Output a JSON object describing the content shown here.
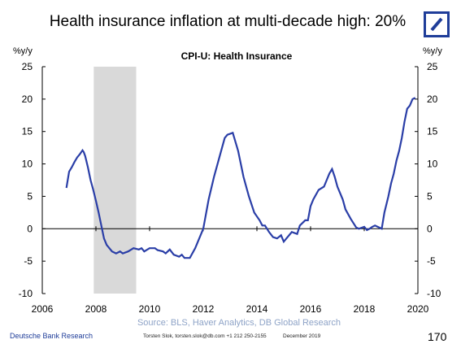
{
  "slide": {
    "title": "Health insurance inflation at multi-decade high: 20%",
    "footer_bank": "Deutsche Bank Research",
    "footer_contact": "Torsten Slok, torsten.slok@db.com +1 212 250-2155",
    "footer_date": "December 2019",
    "page_number": "170"
  },
  "colors": {
    "line": "#2a3ea7",
    "recession": "#d9d9d9",
    "logo": "#1f3d99",
    "source": "#8ea3c7"
  },
  "chart_data": {
    "type": "line",
    "title": "CPI-U: Health Insurance",
    "ylabel_left": "%y/y",
    "ylabel_right": "%y/y",
    "source": "Source: BLS, Haver Analytics, DB Global Research",
    "xlim": [
      2006,
      2020
    ],
    "ylim": [
      -10,
      25
    ],
    "xticks": [
      "2006",
      "2008",
      "2010",
      "2012",
      "2014",
      "2016",
      "2018",
      "2020"
    ],
    "xtick_values": [
      2006,
      2008,
      2010,
      2012,
      2014,
      2016,
      2018,
      2020
    ],
    "yticks": [
      "25",
      "20",
      "15",
      "10",
      "5",
      "0",
      "-5",
      "-10"
    ],
    "ytick_values": [
      25,
      20,
      15,
      10,
      5,
      0,
      -5,
      -10
    ],
    "shaded_region": [
      2007.92,
      2009.5
    ],
    "series": [
      {
        "x": [
          2006.9,
          2007.0,
          2007.1,
          2007.2,
          2007.3,
          2007.4,
          2007.5,
          2007.55,
          2007.6,
          2007.7,
          2007.8,
          2007.9,
          2008.0,
          2008.1,
          2008.2,
          2008.3,
          2008.4,
          2008.5,
          2008.6,
          2008.75,
          2008.9,
          2009.0,
          2009.2,
          2009.4,
          2009.6,
          2009.7,
          2009.8,
          2010.0,
          2010.2,
          2010.3,
          2010.5,
          2010.6,
          2010.75,
          2010.9,
          2011.1,
          2011.2,
          2011.3,
          2011.5,
          2011.7,
          2011.8,
          2012.0,
          2012.2,
          2012.4,
          2012.6,
          2012.7,
          2012.8,
          2012.9,
          2013.1,
          2013.3,
          2013.5,
          2013.7,
          2013.9,
          2014.1,
          2014.2,
          2014.3,
          2014.45,
          2014.6,
          2014.75,
          2014.9,
          2015.0,
          2015.1,
          2015.3,
          2015.5,
          2015.6,
          2015.8,
          2015.9,
          2016.0,
          2016.1,
          2016.3,
          2016.5,
          2016.6,
          2016.7,
          2016.8,
          2016.9,
          2017.0,
          2017.2,
          2017.3,
          2017.5,
          2017.7,
          2017.8,
          2018.0,
          2018.1,
          2018.2,
          2018.3,
          2018.4,
          2018.5,
          2018.65,
          2018.75,
          2018.9,
          2019.0,
          2019.1,
          2019.2,
          2019.3,
          2019.4,
          2019.5,
          2019.6,
          2019.7,
          2019.8,
          2019.9
        ],
        "values": [
          6.3,
          8.8,
          9.5,
          10.3,
          11.0,
          11.5,
          12.1,
          11.8,
          11.2,
          9.5,
          7.5,
          6.0,
          4.3,
          2.5,
          0.5,
          -1.5,
          -2.5,
          -3.0,
          -3.5,
          -3.8,
          -3.5,
          -3.8,
          -3.5,
          -3.0,
          -3.2,
          -3.0,
          -3.5,
          -3.0,
          -3.0,
          -3.3,
          -3.5,
          -3.8,
          -3.2,
          -4.0,
          -4.3,
          -4.0,
          -4.5,
          -4.5,
          -3.0,
          -2.0,
          0.0,
          4.5,
          8.0,
          11.0,
          12.5,
          14.0,
          14.5,
          14.8,
          12.0,
          8.0,
          5.0,
          2.5,
          1.3,
          0.5,
          0.5,
          -0.5,
          -1.3,
          -1.5,
          -1.0,
          -2.0,
          -1.5,
          -0.5,
          -0.8,
          0.5,
          1.3,
          1.3,
          3.5,
          4.5,
          6.0,
          6.5,
          7.5,
          8.5,
          9.2,
          8.0,
          6.5,
          4.5,
          3.0,
          1.5,
          0.2,
          0.0,
          0.3,
          -0.2,
          0.0,
          0.3,
          0.5,
          0.3,
          0.0,
          2.5,
          5.0,
          7.0,
          8.5,
          10.5,
          12.0,
          14.0,
          16.5,
          18.5,
          19.0,
          20.0,
          20.2
        ]
      }
    ]
  }
}
